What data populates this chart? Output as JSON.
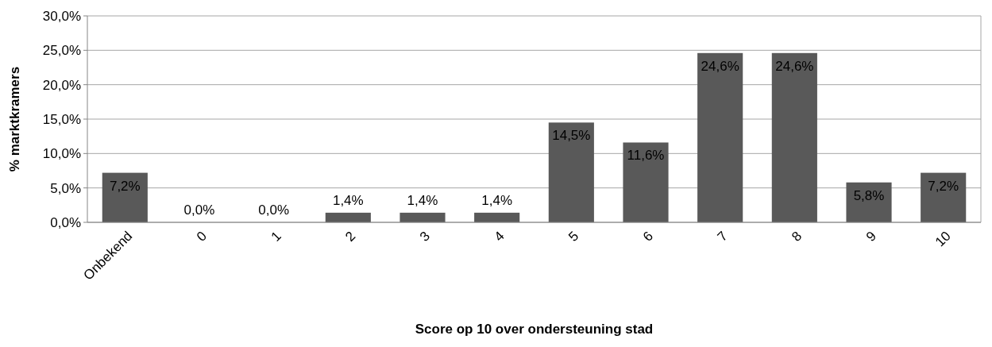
{
  "chart_data": {
    "type": "bar",
    "xlabel": "Score op 10 over ondersteuning stad",
    "ylabel": "% marktkramers",
    "categories": [
      "Onbekend",
      "0",
      "1",
      "2",
      "3",
      "4",
      "5",
      "6",
      "7",
      "8",
      "9",
      "10"
    ],
    "values": [
      7.2,
      0,
      0,
      1.4,
      1.4,
      1.4,
      14.5,
      11.6,
      24.6,
      24.6,
      5.8,
      7.2
    ],
    "value_labels": [
      "7,2%",
      "0,0%",
      "0,0%",
      "1,4%",
      "1,4%",
      "1,4%",
      "14,5%",
      "11,6%",
      "24,6%",
      "24,6%",
      "5,8%",
      "7,2%"
    ],
    "color": "#595959",
    "ylim": [
      0,
      30
    ],
    "yticks": [
      {
        "value": 0,
        "label": "0,0%"
      },
      {
        "value": 5,
        "label": "5,0%"
      },
      {
        "value": 10,
        "label": "10,0%"
      },
      {
        "value": 15,
        "label": "15,0%"
      },
      {
        "value": 20,
        "label": "20,0%"
      },
      {
        "value": 25,
        "label": "25,0%"
      },
      {
        "value": 30,
        "label": "30,0%"
      }
    ],
    "grid": "y"
  }
}
